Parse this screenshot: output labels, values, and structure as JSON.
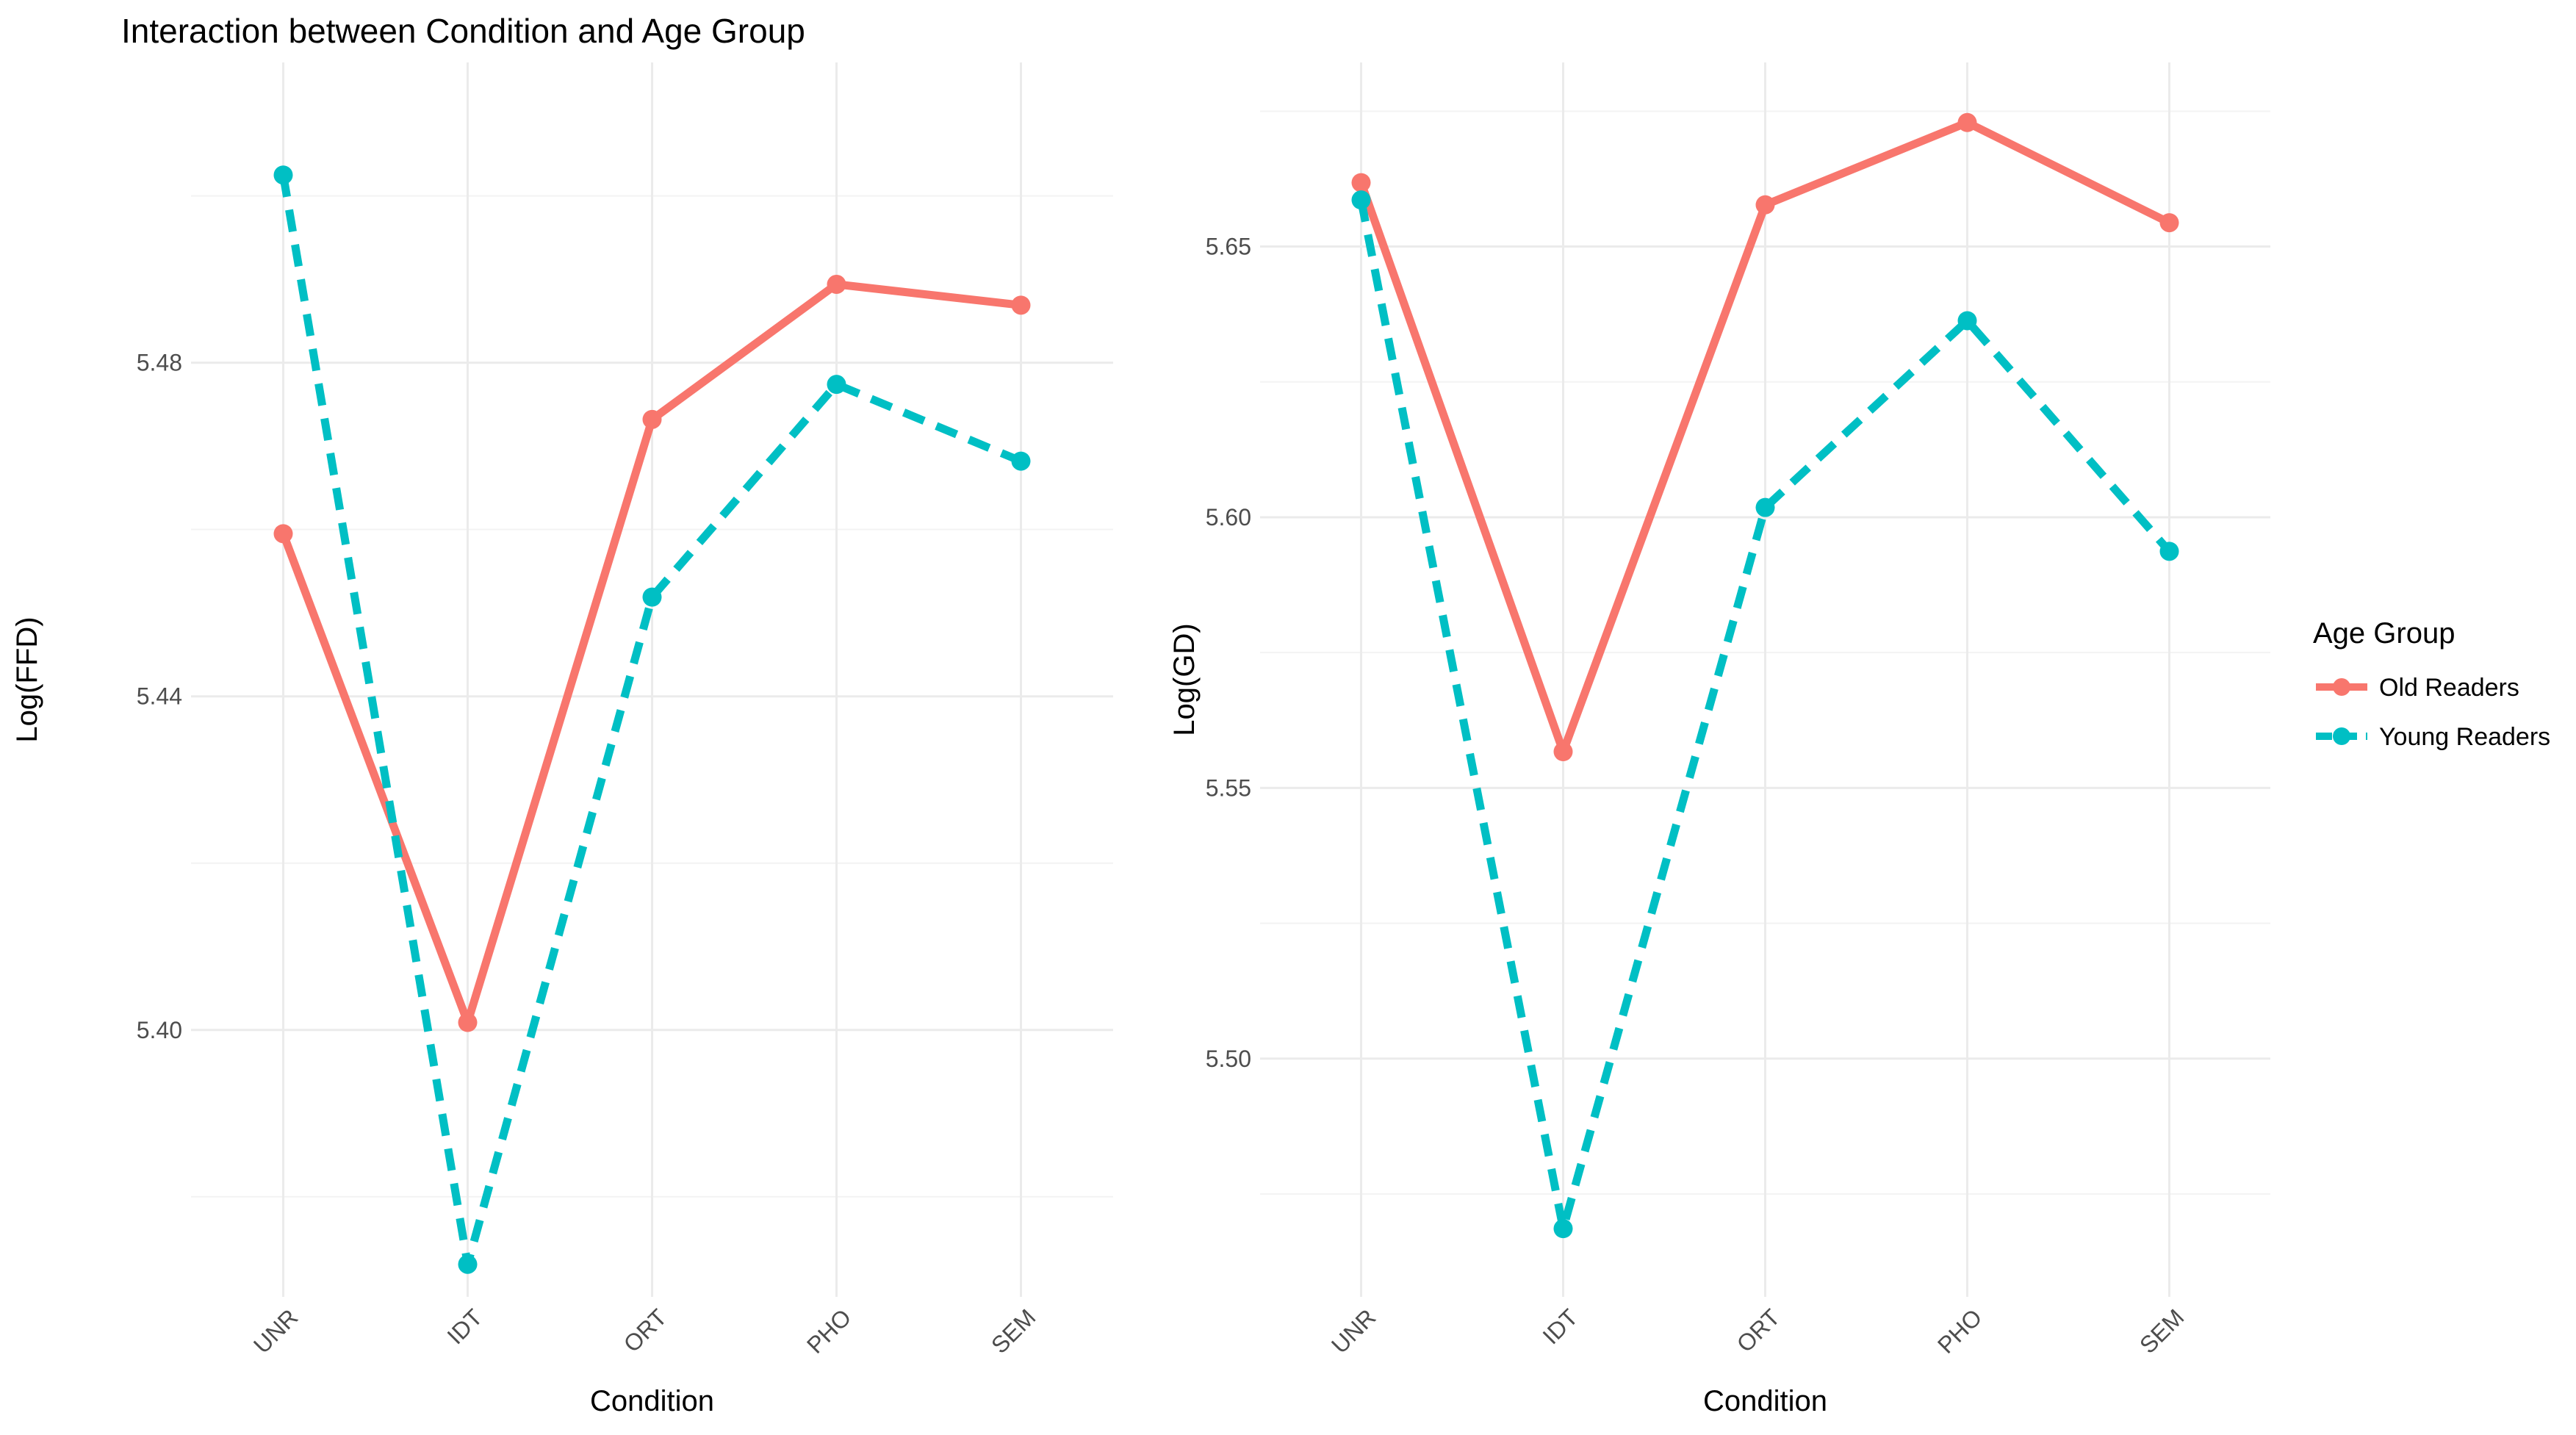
{
  "chart_data": [
    {
      "type": "line",
      "title": "Interaction between Condition and Age Group",
      "xlabel": "Condition",
      "ylabel": "Log(FFD)",
      "categories": [
        "UNR",
        "IDT",
        "ORT",
        "PHO",
        "SEM"
      ],
      "yticks": [
        "5.40",
        "5.44",
        "5.48"
      ],
      "ylim": [
        5.368,
        5.516
      ],
      "grid": true,
      "series": [
        {
          "name": "Old Readers",
          "values": [
            5.4595,
            5.4009,
            5.4732,
            5.4894,
            5.4869
          ]
        },
        {
          "name": "Young Readers",
          "values": [
            5.5025,
            5.3719,
            5.4519,
            5.4774,
            5.4682
          ]
        }
      ]
    },
    {
      "type": "line",
      "title": "",
      "xlabel": "Condition",
      "ylabel": "Log(GD)",
      "categories": [
        "UNR",
        "IDT",
        "ORT",
        "PHO",
        "SEM"
      ],
      "yticks": [
        "5.50",
        "5.55",
        "5.60",
        "5.65"
      ],
      "ylim": [
        5.456,
        5.684
      ],
      "grid": true,
      "series": [
        {
          "name": "Old Readers",
          "values": [
            5.6618,
            5.5567,
            5.6577,
            5.6729,
            5.6544
          ]
        },
        {
          "name": "Young Readers",
          "values": [
            5.6586,
            5.4686,
            5.6018,
            5.6363,
            5.5937
          ]
        }
      ]
    }
  ],
  "legend": {
    "title": "Age Group",
    "placement": "right",
    "items": [
      {
        "label": "Old Readers",
        "color": "#F8766D",
        "dash": "solid"
      },
      {
        "label": "Young Readers",
        "color": "#00BFC4",
        "dash": "dashed"
      }
    ]
  }
}
